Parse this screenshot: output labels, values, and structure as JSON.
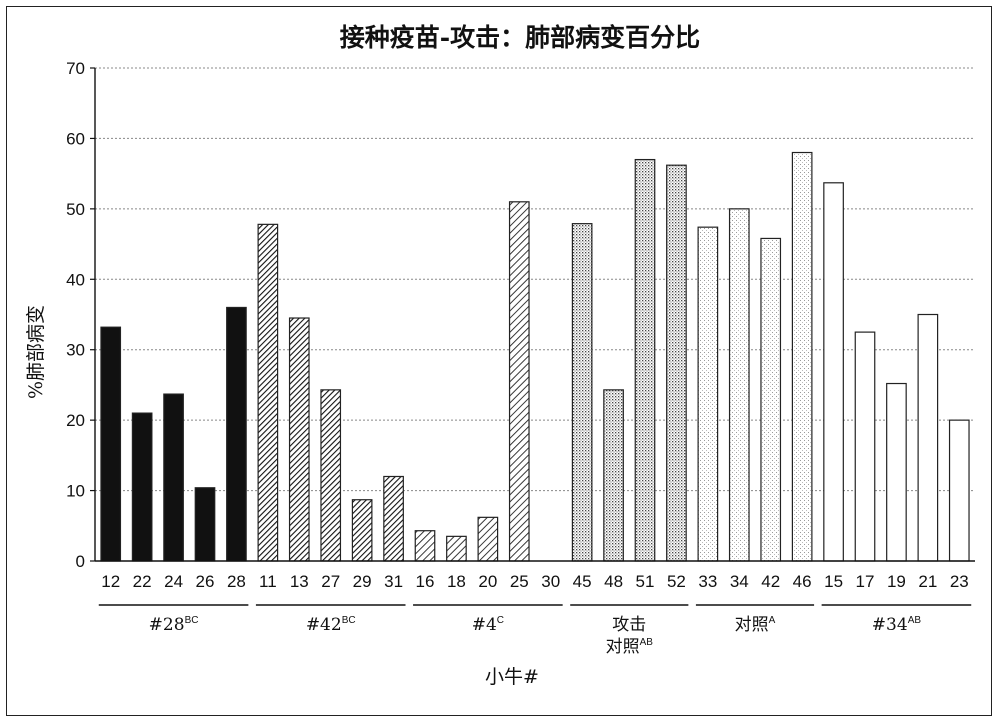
{
  "chart_data": {
    "type": "bar",
    "title": "接种疫苗-攻击：肺部病变百分比",
    "ylabel": "%肺部病变",
    "xlabel": "小牛#",
    "ylim": [
      0,
      70
    ],
    "yticks": [
      0,
      10,
      20,
      30,
      40,
      50,
      60,
      70
    ],
    "grid": true,
    "categories": [
      "12",
      "22",
      "24",
      "26",
      "28",
      "11",
      "13",
      "27",
      "29",
      "31",
      "16",
      "18",
      "20",
      "25",
      "30",
      "45",
      "48",
      "51",
      "52",
      "33",
      "34",
      "42",
      "46",
      "15",
      "17",
      "19",
      "21",
      "23"
    ],
    "values": [
      33.2,
      21.0,
      23.7,
      10.4,
      36.0,
      47.8,
      34.5,
      24.3,
      8.7,
      12.0,
      4.3,
      3.5,
      6.2,
      51.0,
      0,
      47.9,
      24.3,
      57.0,
      56.2,
      47.4,
      50.0,
      45.8,
      58.0,
      53.7,
      32.5,
      25.2,
      35.0,
      20.0
    ],
    "groups": [
      {
        "label": "#28",
        "sup": "BC",
        "categories": [
          "12",
          "22",
          "24",
          "26",
          "28"
        ],
        "pattern": "solid"
      },
      {
        "label": "#42",
        "sup": "BC",
        "categories": [
          "11",
          "13",
          "27",
          "29",
          "31"
        ],
        "pattern": "dense-hatch"
      },
      {
        "label": "#4",
        "sup": "C",
        "categories": [
          "16",
          "18",
          "20",
          "25",
          "30"
        ],
        "pattern": "hatch"
      },
      {
        "label": "攻击",
        "label2": "对照",
        "sup": "AB",
        "categories": [
          "45",
          "48",
          "51",
          "52"
        ],
        "pattern": "dots"
      },
      {
        "label": "对照",
        "sup": "A",
        "categories": [
          "33",
          "34",
          "42",
          "46"
        ],
        "pattern": "light-dots"
      },
      {
        "label": "#34",
        "sup": "AB",
        "categories": [
          "15",
          "17",
          "19",
          "21",
          "23"
        ],
        "pattern": "empty"
      }
    ],
    "colors": {
      "solid": "#111111",
      "stroke": "#222222",
      "grid": "#888888"
    }
  }
}
